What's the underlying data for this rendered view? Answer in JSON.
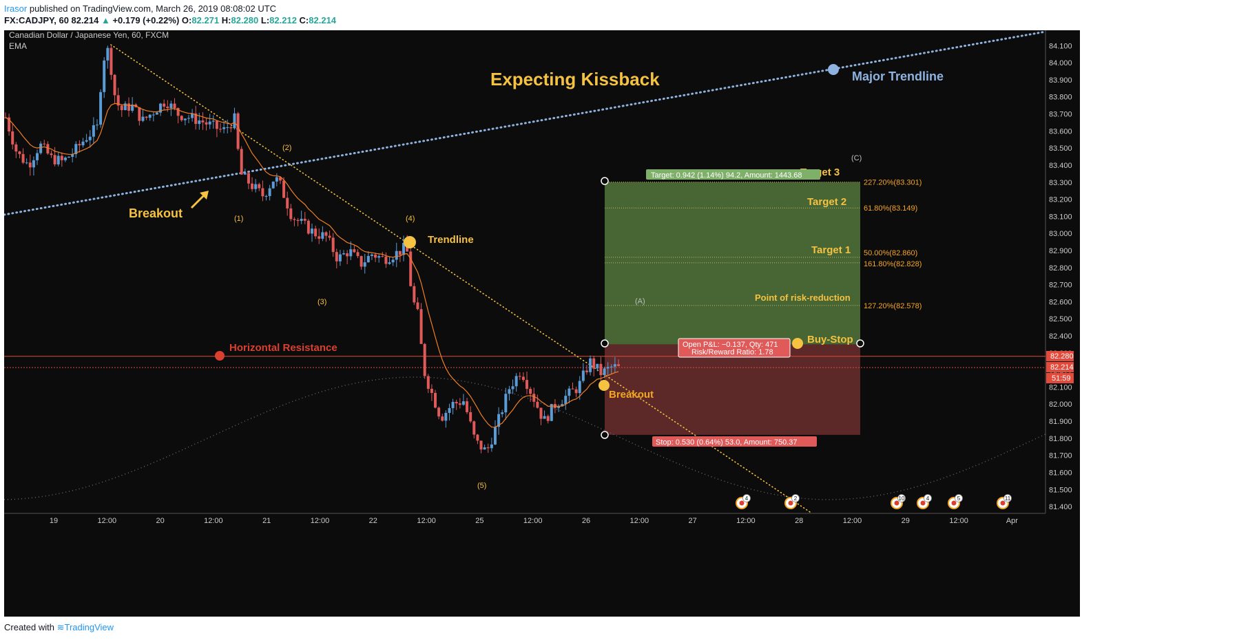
{
  "header": {
    "author": "Irasor",
    "published": " published on TradingView.com, March 26, 2019 08:08:02 UTC",
    "symbol": "FX:CADJPY, 60",
    "last": "82.214",
    "change": "+0.179 (+0.22%)",
    "ohlc": [
      {
        "label": "O:",
        "value": "82.271"
      },
      {
        "label": "H:",
        "value": "82.280"
      },
      {
        "label": "L:",
        "value": "82.212"
      },
      {
        "label": "C:",
        "value": "82.214"
      }
    ]
  },
  "footer": {
    "created_with": "Created with",
    "brand": "TradingView"
  },
  "chart_data": {
    "type": "candlestick",
    "instrument": "Canadian Dollar / Japanese Yen, 60, FXCM",
    "indicator": "EMA",
    "y_ticks": [
      "84.100",
      "84.000",
      "83.900",
      "83.800",
      "83.700",
      "83.600",
      "83.500",
      "83.400",
      "83.300",
      "83.200",
      "83.100",
      "83.000",
      "82.900",
      "82.800",
      "82.700",
      "82.600",
      "82.500",
      "82.400",
      "82.300",
      "82.200",
      "82.100",
      "82.000",
      "81.900",
      "81.800",
      "81.700",
      "81.600",
      "81.500",
      "81.400"
    ],
    "x_ticks": [
      "19",
      "12:00",
      "20",
      "12:00",
      "21",
      "12:00",
      "22",
      "12:00",
      "25",
      "12:00",
      "26",
      "12:00",
      "27",
      "12:00",
      "28",
      "12:00",
      "29",
      "12:00",
      "Apr"
    ],
    "ylim": [
      81.36,
      84.19
    ],
    "price_path": [
      [
        0,
        83.68
      ],
      [
        2,
        83.47
      ],
      [
        4,
        83.4
      ],
      [
        6,
        83.52
      ],
      [
        8,
        83.44
      ],
      [
        10,
        83.42
      ],
      [
        12,
        83.48
      ],
      [
        14,
        83.56
      ],
      [
        16,
        83.62
      ],
      [
        17,
        84.02
      ],
      [
        18,
        84.08
      ],
      [
        19,
        83.82
      ],
      [
        20,
        83.72
      ],
      [
        22,
        83.75
      ],
      [
        24,
        83.66
      ],
      [
        26,
        83.72
      ],
      [
        28,
        83.78
      ],
      [
        30,
        83.7
      ],
      [
        32,
        83.68
      ],
      [
        34,
        83.66
      ],
      [
        36,
        83.63
      ],
      [
        38,
        83.6
      ],
      [
        40,
        83.67
      ],
      [
        41,
        83.35
      ],
      [
        43,
        83.28
      ],
      [
        45,
        83.22
      ],
      [
        47,
        83.33
      ],
      [
        48,
        83.28
      ],
      [
        50,
        83.1
      ],
      [
        52,
        83.05
      ],
      [
        54,
        83.0
      ],
      [
        56,
        82.98
      ],
      [
        58,
        82.85
      ],
      [
        60,
        82.9
      ],
      [
        62,
        82.82
      ],
      [
        64,
        82.88
      ],
      [
        66,
        82.85
      ],
      [
        68,
        82.88
      ],
      [
        70,
        82.92
      ],
      [
        71,
        82.62
      ],
      [
        72,
        82.52
      ],
      [
        73,
        82.2
      ],
      [
        74,
        82.1
      ],
      [
        76,
        81.92
      ],
      [
        78,
        82.0
      ],
      [
        80,
        82.02
      ],
      [
        82,
        81.78
      ],
      [
        84,
        81.72
      ],
      [
        86,
        81.9
      ],
      [
        88,
        82.1
      ],
      [
        90,
        82.2
      ],
      [
        92,
        82.05
      ],
      [
        94,
        81.9
      ],
      [
        96,
        82.0
      ],
      [
        98,
        82.05
      ],
      [
        100,
        82.1
      ],
      [
        102,
        82.25
      ],
      [
        104,
        82.18
      ],
      [
        106,
        82.22
      ],
      [
        107,
        82.21
      ]
    ],
    "horizontal_resistance": 82.28,
    "last_price": 82.214,
    "trendlines": [
      {
        "name": "Major Trendline",
        "style": "dotted",
        "color": "#8fb3e0"
      },
      {
        "name": "Trendline",
        "style": "dotted",
        "color": "#f5c242"
      }
    ],
    "position": {
      "entry": 82.35,
      "target": 83.3,
      "stop": 81.82,
      "target_label": "Target: 0.942 (1.14%) 94.2, Amount: 1443.68",
      "stop_label": "Stop: 0.530 (0.64%) 53.0, Amount: 750.37",
      "pnl_label": "Open P&L: −0.137, Qty: 471",
      "rr_label": "Risk/Reward Ratio: 1.78"
    },
    "fib_levels": [
      {
        "label": "227.20%(83.301)",
        "value": 83.301
      },
      {
        "label": "61.80%(83.149)",
        "value": 83.149
      },
      {
        "label": "50.00%(82.860)",
        "value": 82.86
      },
      {
        "label": "161.80%(82.828)",
        "value": 82.828
      },
      {
        "label": "127.20%(82.578)",
        "value": 82.578
      }
    ],
    "annotations": {
      "title": "Expecting Kissback",
      "major_trendline": "Major Trendline",
      "trendline": "Trendline",
      "breakout_left": "Breakout",
      "breakout_right": "Breakout",
      "horizontal_resistance": "Horizontal Resistance",
      "target3": "Target 3",
      "target2": "Target 2",
      "target1": "Target 1",
      "risk_reduction": "Point of risk-reduction",
      "buy_stop": "Buy-Stop",
      "waves": [
        "(1)",
        "(2)",
        "(3)",
        "(4)",
        "(5)",
        "(A)",
        "(C)"
      ]
    },
    "price_tags": {
      "resistance": "82.280",
      "last": "82.214",
      "countdown": "51:59"
    },
    "event_counts": [
      "4",
      "2",
      "10",
      "4",
      "5",
      "11"
    ],
    "colors": {
      "up": "#5b9cd6",
      "down": "#e05a5a",
      "ema": "#f07f24",
      "background": "#0c0c0c",
      "annotation": "#f5c242"
    }
  }
}
